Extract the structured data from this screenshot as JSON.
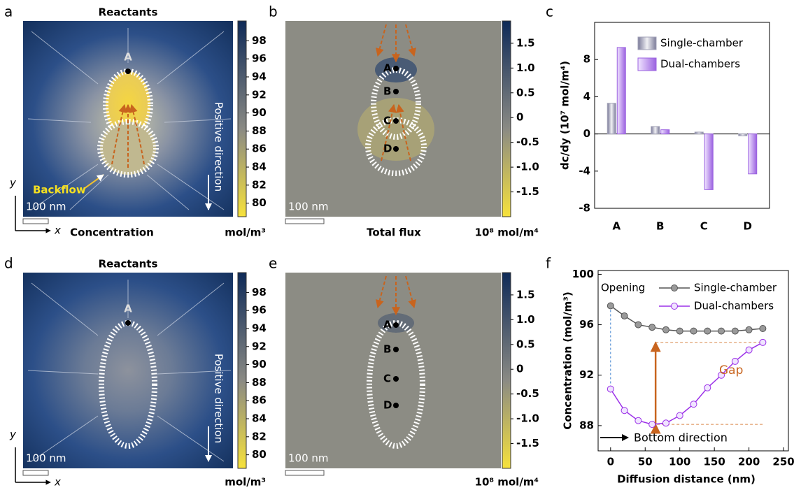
{
  "panel_letters": [
    "a",
    "b",
    "c",
    "d",
    "e",
    "f"
  ],
  "panels": {
    "a": {
      "title": "Reactants",
      "points": [
        "A"
      ],
      "annotation": "Backflow",
      "direction": "Positive direction",
      "scale_bar": "100 nm",
      "axes": [
        "y",
        "x"
      ],
      "caption": "Concentration"
    },
    "b": {
      "points": [
        "A",
        "B",
        "C",
        "D"
      ],
      "scale_bar": "100 nm",
      "caption": "Total flux"
    },
    "d": {
      "title": "Reactants",
      "points": [
        "A"
      ],
      "direction": "Positive direction",
      "scale_bar": "100 nm",
      "axes": [
        "y",
        "x"
      ]
    },
    "e": {
      "points": [
        "A",
        "B",
        "C",
        "D"
      ],
      "scale_bar": "100 nm"
    }
  },
  "colorbars": {
    "concentration": {
      "unit": "mol/m³",
      "lim": [
        78.5,
        100.2
      ],
      "ticks": [
        98,
        96,
        94,
        92,
        90,
        88,
        86,
        84,
        82,
        80
      ]
    },
    "flux": {
      "unit": "10⁸ mol/m⁴",
      "lim": [
        -2,
        1.95
      ],
      "ticks": [
        1.5,
        {
          "value": 1.0,
          "label": "1.0"
        },
        0.5,
        0,
        -0.5,
        {
          "value": -1.0,
          "label": "-1.0"
        },
        -1.5
      ]
    }
  },
  "chart_data": [
    {
      "type": "bar",
      "ylabel": "dc/dy (10⁷ mol/m⁴)",
      "categories": [
        "A",
        "B",
        "C",
        "D"
      ],
      "series": [
        {
          "name": "Single-chamber",
          "color": "#a3a3b8",
          "values": [
            3.3,
            0.8,
            0.2,
            -0.2
          ]
        },
        {
          "name": "Dual-chambers",
          "color": "#9b62e0",
          "values": [
            9.3,
            0.45,
            -6.0,
            -4.3
          ]
        }
      ],
      "ylim": [
        -8,
        12
      ],
      "yticks": [
        -8,
        -4,
        0,
        4,
        8
      ],
      "legend": "upper right"
    },
    {
      "type": "line",
      "xlabel": "Diffusion distance (nm)",
      "ylabel": "Concentration (mol/m³)",
      "x": [
        0,
        20,
        40,
        60,
        80,
        100,
        120,
        140,
        160,
        180,
        200,
        220
      ],
      "series": [
        {
          "name": "Single-chamber",
          "color": "#555555",
          "values": [
            97.5,
            96.7,
            96.0,
            95.8,
            95.6,
            95.5,
            95.5,
            95.5,
            95.5,
            95.5,
            95.6,
            95.7
          ]
        },
        {
          "name": "Dual-chambers",
          "color": "#9b30e8",
          "values": [
            90.9,
            89.2,
            88.4,
            88.1,
            88.2,
            88.8,
            89.7,
            91.0,
            92.0,
            93.1,
            94.0,
            94.6
          ]
        }
      ],
      "xlim": [
        -18,
        257
      ],
      "xticks": [
        0,
        50,
        100,
        150,
        200,
        250
      ],
      "ylim": [
        86,
        100.3
      ],
      "yticks": [
        88,
        92,
        96,
        100
      ],
      "annotations": [
        "Opening",
        "Gap",
        "Bottom direction"
      ]
    }
  ]
}
